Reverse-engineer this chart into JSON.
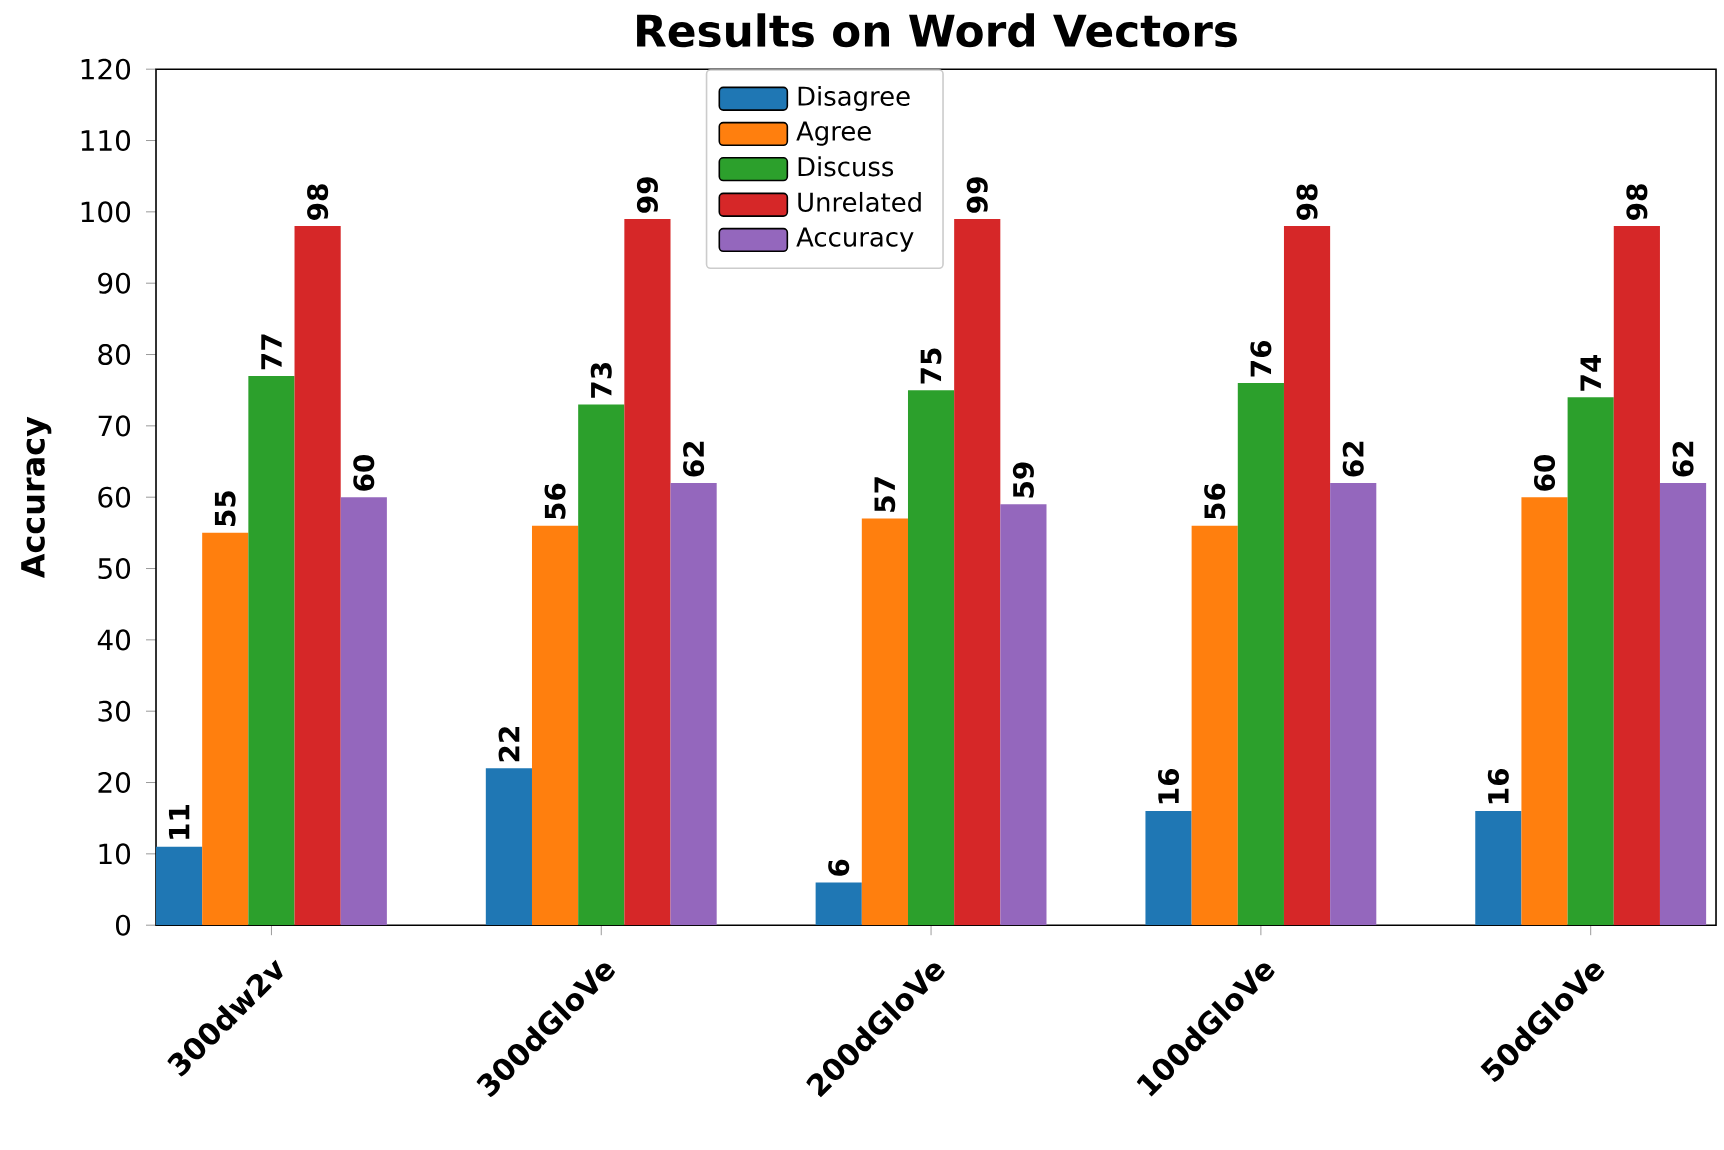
{
  "chart_data": {
    "type": "bar",
    "title": "Results on Word Vectors",
    "ylabel": "Accuracy",
    "categories": [
      "300dw2v",
      "300dGloVe",
      "200dGloVe",
      "100dGloVe",
      "50dGloVe"
    ],
    "series": [
      {
        "name": "Disagree",
        "color": "#1f77b4",
        "values": [
          11,
          22,
          6,
          16,
          16
        ]
      },
      {
        "name": "Agree",
        "color": "#ff7f0e",
        "values": [
          55,
          56,
          57,
          56,
          60
        ]
      },
      {
        "name": "Discuss",
        "color": "#2ca02c",
        "values": [
          77,
          73,
          75,
          76,
          74
        ]
      },
      {
        "name": "Unrelated",
        "color": "#d62728",
        "values": [
          98,
          99,
          99,
          98,
          98
        ]
      },
      {
        "name": "Accuracy",
        "color": "#9467bd",
        "values": [
          60,
          62,
          59,
          62,
          62
        ]
      }
    ],
    "ylim": [
      0,
      120
    ],
    "yticks": [
      0,
      10,
      20,
      30,
      40,
      50,
      60,
      70,
      80,
      90,
      100,
      110,
      120
    ],
    "data_labels": true,
    "legend": "top",
    "grid": false
  }
}
